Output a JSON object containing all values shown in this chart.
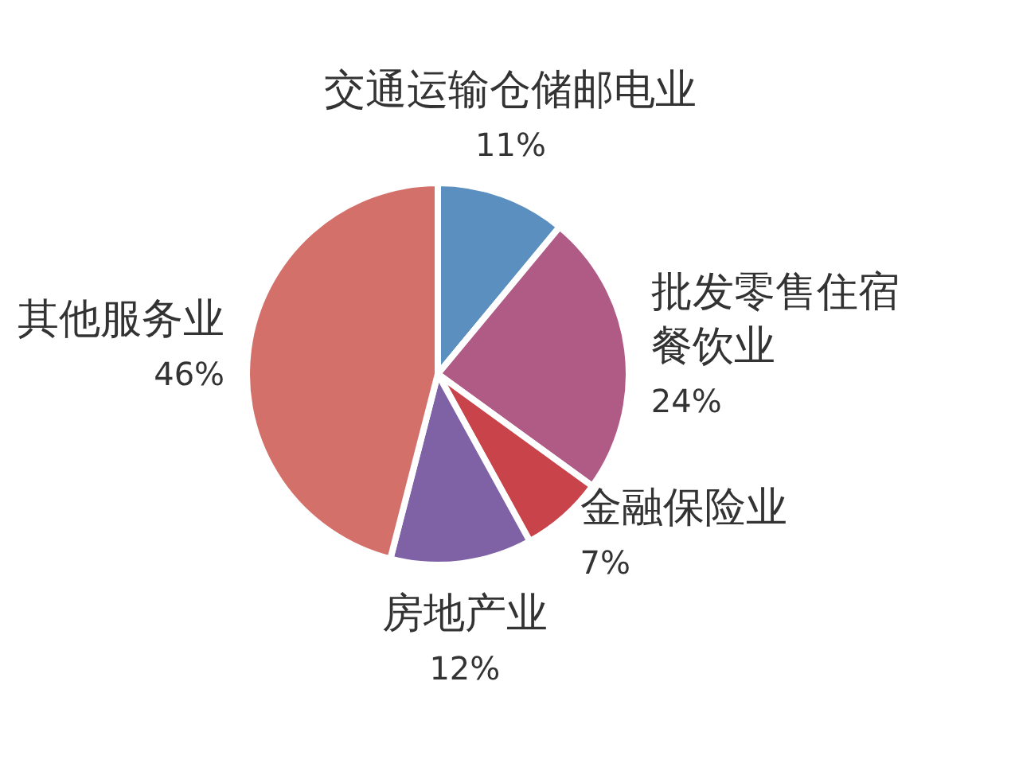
{
  "chart_data": {
    "type": "pie",
    "categories": [
      "交通运输仓储邮电业",
      "批发零售住宿餐饮业",
      "金融保险业",
      "房地产业",
      "其他服务业"
    ],
    "values": [
      11,
      24,
      7,
      12,
      46
    ],
    "colors": [
      "#5b8fbf",
      "#b05a86",
      "#c8434a",
      "#7f62a6",
      "#d4706a"
    ],
    "value_labels": [
      "11%",
      "24%",
      "7%",
      "12%",
      "46%"
    ]
  }
}
